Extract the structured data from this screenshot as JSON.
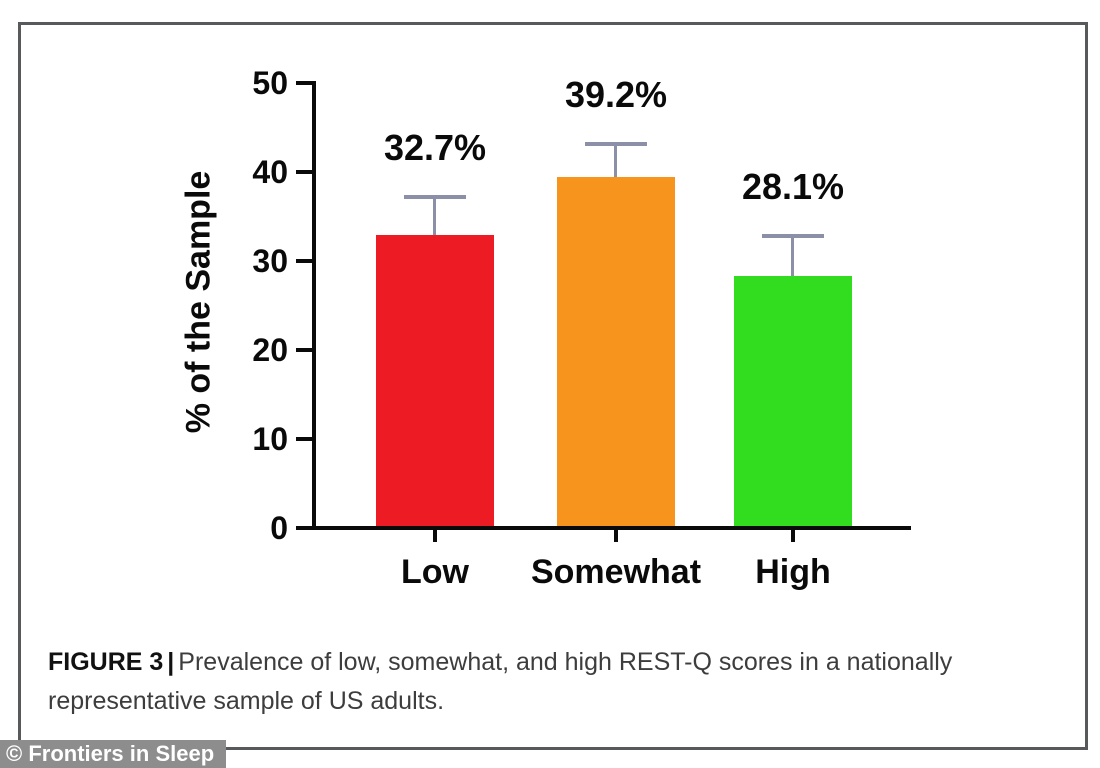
{
  "figure": {
    "caption": {
      "label": "FIGURE 3",
      "separator": "|",
      "text": "Prevalence of low, somewhat, and high REST-Q scores in a nationally representative sample of US adults."
    },
    "watermark": "© Frontiers in Sleep"
  },
  "chart_data": {
    "type": "bar",
    "title": "",
    "xlabel": "",
    "ylabel": "% of the Sample",
    "categories": [
      "Low",
      "Somewhat",
      "High"
    ],
    "values": [
      32.7,
      39.2,
      28.1
    ],
    "value_labels": [
      "32.7%",
      "39.2%",
      "28.1%"
    ],
    "errors_plus": [
      4.5,
      4.0,
      4.7
    ],
    "bar_colors": [
      "#ed1c24",
      "#f7941e",
      "#32dc1e"
    ],
    "error_bar_color": "#8c8fa8",
    "axis_color": "#0a0a0a",
    "ylim": [
      0,
      50
    ],
    "yticks": [
      0,
      10,
      20,
      30,
      40,
      50
    ],
    "grid": false,
    "legend": null
  }
}
